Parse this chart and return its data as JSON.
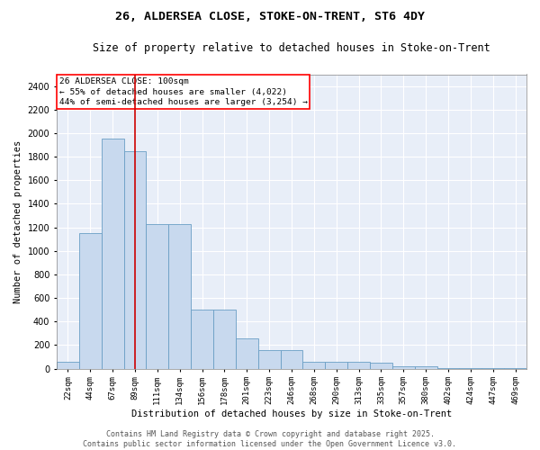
{
  "title_line1": "26, ALDERSEA CLOSE, STOKE-ON-TRENT, ST6 4DY",
  "title_line2": "Size of property relative to detached houses in Stoke-on-Trent",
  "xlabel": "Distribution of detached houses by size in Stoke-on-Trent",
  "ylabel": "Number of detached properties",
  "bar_color": "#c8d9ee",
  "bar_edge_color": "#6a9ec5",
  "bg_color": "#e8eef8",
  "grid_color": "#ffffff",
  "vline_color": "#cc0000",
  "bins": [
    "22sqm",
    "44sqm",
    "67sqm",
    "89sqm",
    "111sqm",
    "134sqm",
    "156sqm",
    "178sqm",
    "201sqm",
    "223sqm",
    "246sqm",
    "268sqm",
    "290sqm",
    "313sqm",
    "335sqm",
    "357sqm",
    "380sqm",
    "402sqm",
    "424sqm",
    "447sqm",
    "469sqm"
  ],
  "values": [
    60,
    1150,
    1950,
    1850,
    1230,
    1230,
    500,
    500,
    260,
    155,
    155,
    60,
    60,
    55,
    50,
    20,
    20,
    5,
    3,
    2,
    1
  ],
  "annotation_line1": "26 ALDERSEA CLOSE: 100sqm",
  "annotation_line2": "← 55% of detached houses are smaller (4,022)",
  "annotation_line3": "44% of semi-detached houses are larger (3,254) →",
  "ylim": [
    0,
    2500
  ],
  "yticks": [
    0,
    200,
    400,
    600,
    800,
    1000,
    1200,
    1400,
    1600,
    1800,
    2000,
    2200,
    2400
  ],
  "vline_x": 3.0,
  "footer_line1": "Contains HM Land Registry data © Crown copyright and database right 2025.",
  "footer_line2": "Contains public sector information licensed under the Open Government Licence v3.0."
}
